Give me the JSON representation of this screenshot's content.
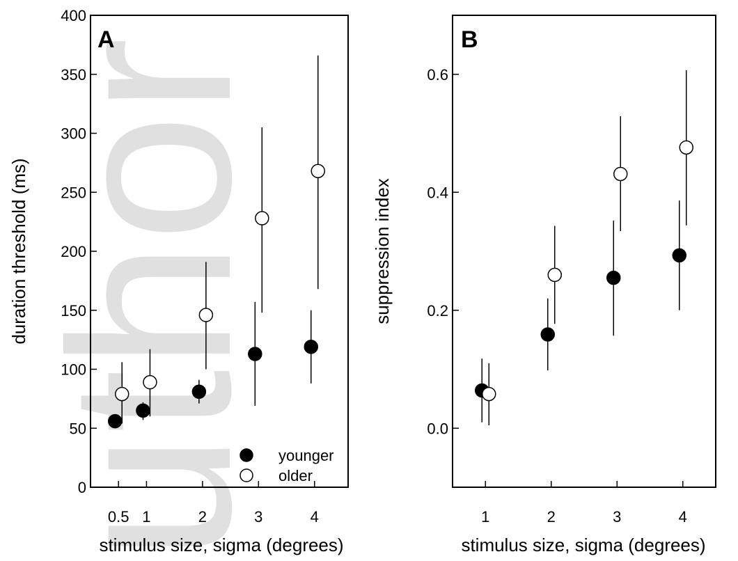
{
  "watermark": "uthor Manu",
  "colors": {
    "filled": "#000000",
    "open_fill": "#ffffff",
    "stroke": "#000000",
    "watermark": "#c8c8c8"
  },
  "chart_data": [
    {
      "type": "scatter",
      "panel_label": "A",
      "xlabel": "stimulus size, sigma (degrees)",
      "ylabel": "duration threshold (ms)",
      "xlim": [
        0,
        4.6
      ],
      "ylim": [
        0,
        400
      ],
      "x_ticks": [
        0.5,
        1,
        2,
        3,
        4
      ],
      "x_tick_labels": [
        "0.5",
        "1",
        "2",
        "3",
        "4"
      ],
      "y_ticks": [
        0,
        50,
        100,
        150,
        200,
        250,
        300,
        350,
        400
      ],
      "y_tick_labels": [
        "0",
        "50",
        "100",
        "150",
        "200",
        "250",
        "300",
        "350",
        "400"
      ],
      "grid": false,
      "legend": {
        "placement": "bottom-right"
      },
      "series": [
        {
          "name": "younger",
          "marker": "filled-circle",
          "points": [
            {
              "x": 0.5,
              "y": 56,
              "err_low": 50,
              "err_high": 62
            },
            {
              "x": 1,
              "y": 65,
              "err_low": 57,
              "err_high": 72
            },
            {
              "x": 2,
              "y": 81,
              "err_low": 71,
              "err_high": 91
            },
            {
              "x": 3,
              "y": 113,
              "err_low": 69,
              "err_high": 157
            },
            {
              "x": 4,
              "y": 119,
              "err_low": 88,
              "err_high": 150
            }
          ]
        },
        {
          "name": "older",
          "marker": "open-circle",
          "points": [
            {
              "x": 0.5,
              "y": 79,
              "err_low": 54,
              "err_high": 106
            },
            {
              "x": 1,
              "y": 89,
              "err_low": 60,
              "err_high": 117
            },
            {
              "x": 2,
              "y": 146,
              "err_low": 100,
              "err_high": 191
            },
            {
              "x": 3,
              "y": 228,
              "err_low": 148,
              "err_high": 305
            },
            {
              "x": 4,
              "y": 268,
              "err_low": 168,
              "err_high": 366
            }
          ]
        }
      ]
    },
    {
      "type": "scatter",
      "panel_label": "B",
      "xlabel": "stimulus size, sigma (degrees)",
      "ylabel": "suppression index",
      "xlim": [
        0.5,
        4.5
      ],
      "ylim": [
        -0.1,
        0.7
      ],
      "x_ticks": [
        1,
        2,
        3,
        4
      ],
      "x_tick_labels": [
        "1",
        "2",
        "3",
        "4"
      ],
      "y_ticks": [
        0.0,
        0.2,
        0.4,
        0.6
      ],
      "y_tick_labels": [
        "0.0",
        "0.2",
        "0.4",
        "0.6"
      ],
      "grid": false,
      "series": [
        {
          "name": "younger",
          "marker": "filled-circle",
          "points": [
            {
              "x": 1,
              "y": 0.064,
              "err_low": 0.01,
              "err_high": 0.118
            },
            {
              "x": 2,
              "y": 0.159,
              "err_low": 0.098,
              "err_high": 0.22
            },
            {
              "x": 3,
              "y": 0.255,
              "err_low": 0.157,
              "err_high": 0.352
            },
            {
              "x": 4,
              "y": 0.293,
              "err_low": 0.2,
              "err_high": 0.386
            }
          ]
        },
        {
          "name": "older",
          "marker": "open-circle",
          "points": [
            {
              "x": 1,
              "y": 0.058,
              "err_low": 0.005,
              "err_high": 0.11
            },
            {
              "x": 2,
              "y": 0.26,
              "err_low": 0.177,
              "err_high": 0.343
            },
            {
              "x": 3,
              "y": 0.431,
              "err_low": 0.334,
              "err_high": 0.529
            },
            {
              "x": 4,
              "y": 0.476,
              "err_low": 0.344,
              "err_high": 0.607
            }
          ]
        }
      ]
    }
  ]
}
